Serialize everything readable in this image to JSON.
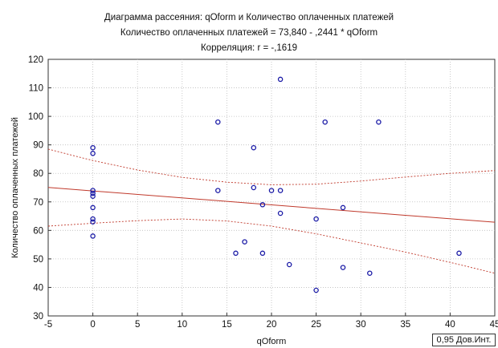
{
  "chart_data": {
    "type": "scatter",
    "title": "Диаграмма рассеяния: qOform   и  Количество оплаченных платежей",
    "subtitle": "Количество оплаченных платежей = 73,840 - ,2441  * qOform",
    "correlation": "Корреляция: r =  -,1619",
    "xlabel": "qOform",
    "ylabel": "Количество оплаченных платежей",
    "xlim": [
      -5,
      45
    ],
    "ylim": [
      30,
      120
    ],
    "x_ticks": [
      -5,
      0,
      5,
      10,
      15,
      20,
      25,
      30,
      35,
      40,
      45
    ],
    "y_ticks": [
      30,
      40,
      50,
      60,
      70,
      80,
      90,
      100,
      110,
      120
    ],
    "grid": true,
    "legend": "0,95 Дов.Инт.",
    "regression": {
      "intercept": 73.84,
      "slope": -0.2441
    },
    "confidence_band": {
      "upper": [
        [
          -5,
          88.5
        ],
        [
          0,
          84.5
        ],
        [
          5,
          81.2
        ],
        [
          10,
          78.6
        ],
        [
          15,
          76.9
        ],
        [
          20,
          76.0
        ],
        [
          25,
          76.2
        ],
        [
          30,
          77.3
        ],
        [
          35,
          78.7
        ],
        [
          40,
          80.0
        ],
        [
          45,
          81.0
        ]
      ],
      "lower": [
        [
          -5,
          61.5
        ],
        [
          0,
          62.5
        ],
        [
          5,
          63.4
        ],
        [
          10,
          64.0
        ],
        [
          15,
          63.3
        ],
        [
          20,
          61.5
        ],
        [
          25,
          58.8
        ],
        [
          30,
          55.6
        ],
        [
          35,
          52.4
        ],
        [
          40,
          48.8
        ],
        [
          45,
          45.0
        ]
      ]
    },
    "points": [
      [
        0,
        89
      ],
      [
        0,
        87
      ],
      [
        0,
        74
      ],
      [
        0,
        73
      ],
      [
        0,
        72
      ],
      [
        0,
        68
      ],
      [
        0,
        64
      ],
      [
        0,
        63
      ],
      [
        0,
        58
      ],
      [
        14,
        98
      ],
      [
        14,
        74
      ],
      [
        16,
        52
      ],
      [
        17,
        56
      ],
      [
        18,
        89
      ],
      [
        18,
        75
      ],
      [
        19,
        69
      ],
      [
        19,
        52
      ],
      [
        20,
        74
      ],
      [
        21,
        113
      ],
      [
        21,
        74
      ],
      [
        21,
        66
      ],
      [
        22,
        48
      ],
      [
        25,
        64
      ],
      [
        25,
        39
      ],
      [
        26,
        98
      ],
      [
        28,
        68
      ],
      [
        28,
        47
      ],
      [
        31,
        45
      ],
      [
        32,
        98
      ],
      [
        41,
        52
      ]
    ]
  }
}
